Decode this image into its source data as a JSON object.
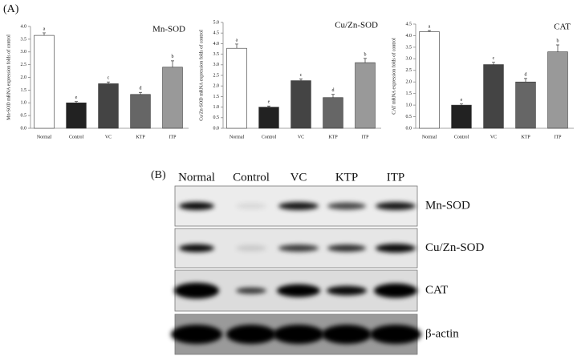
{
  "panel_labels": [
    "(A)",
    "(B)"
  ],
  "chart_data": [
    {
      "type": "bar",
      "title": "Mn-SOD",
      "y_label": "Mn-SOD mRNA expression folds of control",
      "categories": [
        "Normal",
        "Control",
        "VC",
        "KTP",
        "ITP"
      ],
      "values": [
        3.65,
        1.0,
        1.75,
        1.33,
        2.4
      ],
      "errors": [
        0.1,
        0.05,
        0.07,
        0.08,
        0.25
      ],
      "annotations": [
        "a",
        "e",
        "c",
        "d",
        "b"
      ],
      "colors": [
        "#ffffff",
        "#222222",
        "#444444",
        "#666666",
        "#999999"
      ],
      "ylim": [
        0,
        4
      ],
      "yticks": [
        {
          "value": 0,
          "label": "0.0"
        },
        {
          "value": 0.5,
          "label": "0.5"
        },
        {
          "value": 1,
          "label": "1.0"
        },
        {
          "value": 1.5,
          "label": "1.5"
        },
        {
          "value": 2,
          "label": "2.0"
        },
        {
          "value": 2.5,
          "label": "2.5"
        },
        {
          "value": 3,
          "label": "3.0"
        },
        {
          "value": 3.5,
          "label": "3.5"
        },
        {
          "value": 4,
          "label": "4.0"
        }
      ]
    },
    {
      "type": "bar",
      "title": "Cu/Zn-SOD",
      "y_label": "Cu/Zn-SOD mRNA expression folds of control",
      "categories": [
        "Normal",
        "Control",
        "VC",
        "KTP",
        "ITP"
      ],
      "values": [
        3.78,
        1.0,
        2.25,
        1.45,
        3.1
      ],
      "errors": [
        0.2,
        0.05,
        0.08,
        0.15,
        0.2
      ],
      "annotations": [
        "a",
        "e",
        "c",
        "d",
        "b"
      ],
      "colors": [
        "#ffffff",
        "#222222",
        "#444444",
        "#666666",
        "#999999"
      ],
      "ylim": [
        0,
        5
      ],
      "yticks": [
        {
          "value": 0,
          "label": "0.0"
        },
        {
          "value": 0.5,
          "label": "0.5"
        },
        {
          "value": 1,
          "label": "1.0"
        },
        {
          "value": 1.5,
          "label": "1.5"
        },
        {
          "value": 2,
          "label": "2.0"
        },
        {
          "value": 2.5,
          "label": "2.5"
        },
        {
          "value": 3,
          "label": "3.0"
        },
        {
          "value": 3.5,
          "label": "3.5"
        },
        {
          "value": 4,
          "label": "4.0"
        },
        {
          "value": 4.5,
          "label": "4.5"
        },
        {
          "value": 5,
          "label": "5.0"
        }
      ]
    },
    {
      "type": "bar",
      "title": "CAT",
      "y_label": "CAT mRNA expression folds of control",
      "categories": [
        "Normal",
        "Control",
        "VC",
        "KTP",
        "ITP"
      ],
      "values": [
        4.17,
        1.0,
        2.75,
        2.0,
        3.3
      ],
      "errors": [
        0.05,
        0.05,
        0.1,
        0.15,
        0.3
      ],
      "annotations": [
        "a",
        "e",
        "c",
        "d",
        "b"
      ],
      "colors": [
        "#ffffff",
        "#222222",
        "#444444",
        "#666666",
        "#999999"
      ],
      "ylim": [
        0,
        4.5
      ],
      "yticks": [
        {
          "value": 0,
          "label": "0.0"
        },
        {
          "value": 0.5,
          "label": "0.5"
        },
        {
          "value": 1,
          "label": "1.0"
        },
        {
          "value": 1.5,
          "label": "1.5"
        },
        {
          "value": 2,
          "label": "2.0"
        },
        {
          "value": 2.5,
          "label": "2.5"
        },
        {
          "value": 3,
          "label": "3.0"
        },
        {
          "value": 3.5,
          "label": "3.5"
        },
        {
          "value": 4,
          "label": "4.0"
        },
        {
          "value": 4.5,
          "label": "4.5"
        }
      ]
    }
  ],
  "blot": {
    "column_labels": [
      "Normal",
      "Control",
      "VC",
      "KTP",
      "ITP"
    ],
    "row_labels": [
      "Mn-SOD",
      "Cu/Zn-SOD",
      "CAT",
      "β-actin"
    ]
  }
}
